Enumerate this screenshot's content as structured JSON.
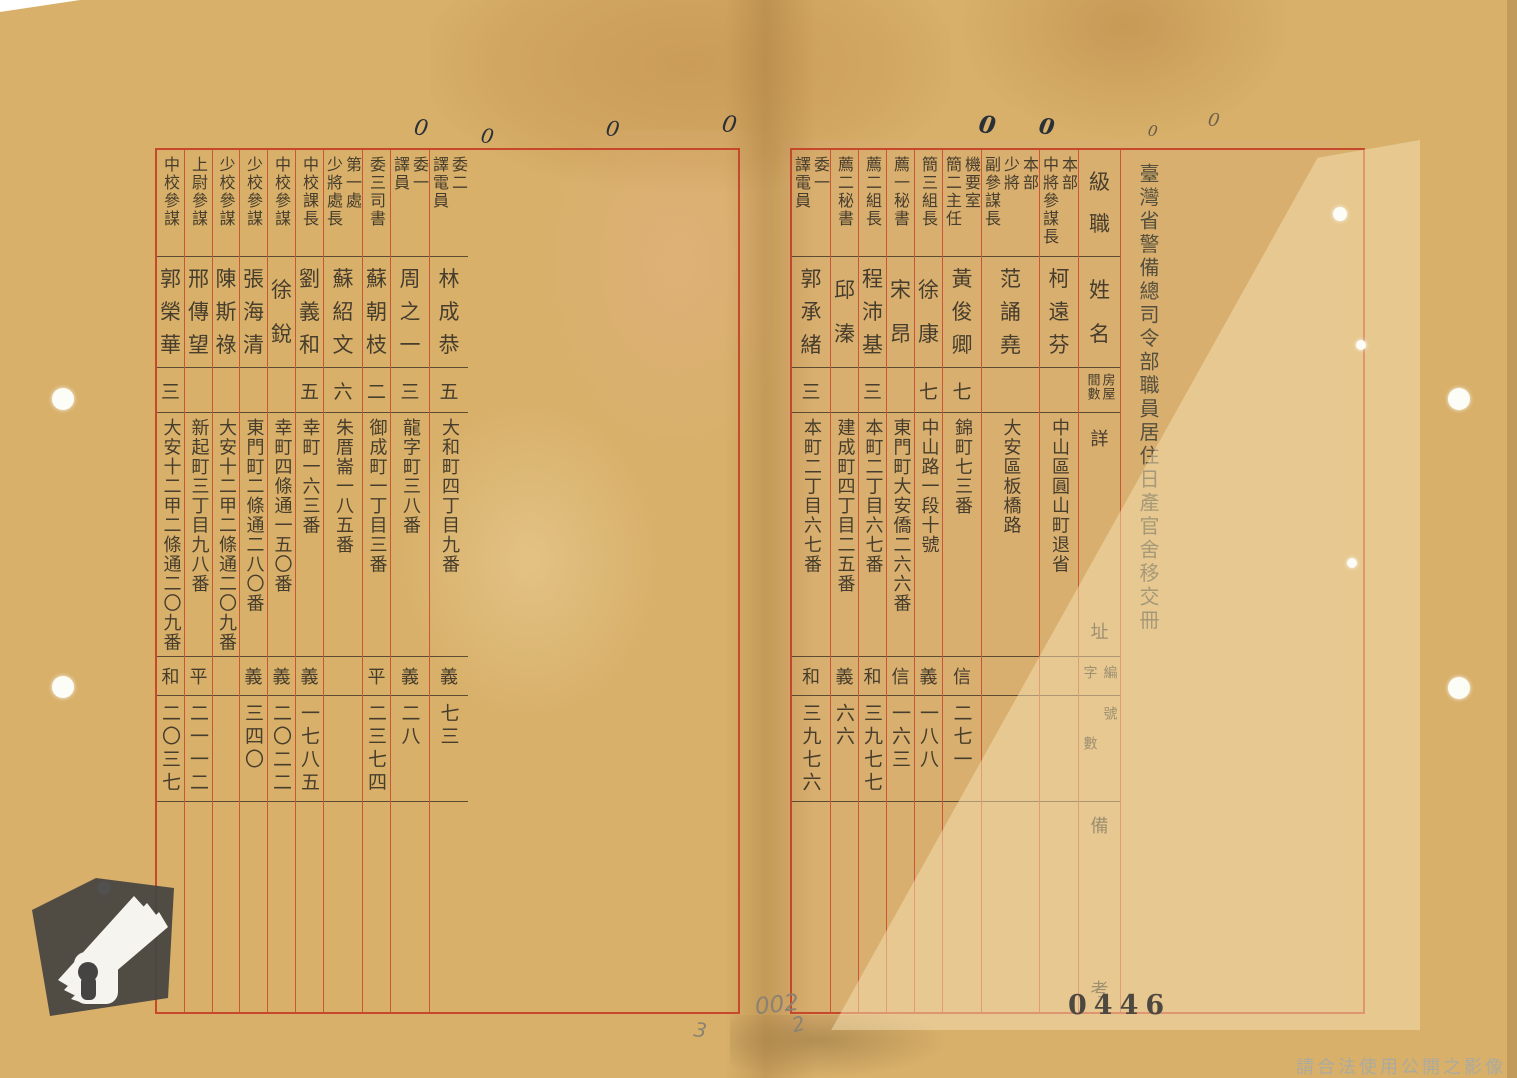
{
  "document": {
    "title": "臺灣省警備總司令部職員居住日產官舍移交冊",
    "labels": {
      "rank": "級職",
      "name": "姓名",
      "rooms_line1": "房屋",
      "rooms_line2": "間數",
      "address_top": "詳",
      "address_bottom": "址",
      "serial_main": "編",
      "serial_zi": "字",
      "serial_hao": "號",
      "serial_shu": "數",
      "remarks_top": "備",
      "remarks_bottom": "考"
    },
    "right_page": {
      "columns": [
        {
          "rank_lines": [
            "本部",
            "中將參謀長"
          ],
          "name": "柯遠芬",
          "rooms": "",
          "address": "中山區圓山町退省",
          "zi": "",
          "num": ""
        },
        {
          "rank_lines": [
            "本部",
            "少將",
            "副參謀長"
          ],
          "name": "范誦堯",
          "rooms": "",
          "address": "大安區板橋路",
          "zi": "",
          "num": ""
        },
        {
          "rank_lines": [
            "機要室",
            "簡二主任"
          ],
          "name": "黃俊卿",
          "rooms": "七",
          "address": "錦町七三番",
          "zi": "信",
          "num": "二七一"
        },
        {
          "rank_lines": [
            "簡三組長"
          ],
          "name": "徐康",
          "rooms": "七",
          "address": "中山路一段十號",
          "zi": "義",
          "num": "一八八"
        },
        {
          "rank_lines": [
            "薦一秘書"
          ],
          "name": "宋昂",
          "rooms": "",
          "address": "東門町大安僑二六六番",
          "zi": "信",
          "num": "一六三"
        },
        {
          "rank_lines": [
            "薦二組長"
          ],
          "name": "程沛基",
          "rooms": "三",
          "address": "本町二丁目六七番",
          "zi": "和",
          "num": "三九七七"
        },
        {
          "rank_lines": [
            "薦二秘書"
          ],
          "name": "邱溱",
          "rooms": "",
          "address": "建成町四丁目二五番",
          "zi": "義",
          "num": "六六"
        },
        {
          "rank_lines": [
            "委一",
            "譯電員"
          ],
          "name": "郭承緒",
          "rooms": "三",
          "address": "本町二丁目六七番",
          "zi": "和",
          "num": "三九七六"
        }
      ]
    },
    "left_page": {
      "columns": [
        {
          "rank_lines": [
            "委二",
            "譯電員"
          ],
          "name": "林成恭",
          "rooms": "五",
          "address": "大和町四丁目九番",
          "zi": "義",
          "num": "七三"
        },
        {
          "rank_lines": [
            "委一",
            "譯員"
          ],
          "name": "周之一",
          "rooms": "三",
          "address": "龍字町三八番",
          "zi": "義",
          "num": "二八"
        },
        {
          "rank_lines": [
            "委三司書"
          ],
          "name": "蘇朝枝",
          "rooms": "二",
          "address": "御成町一丁目三番",
          "zi": "平",
          "num": "二三七四"
        },
        {
          "rank_lines": [
            "第一處",
            "少將處長"
          ],
          "name": "蘇紹文",
          "rooms": "六",
          "address": "朱厝崙一八五番",
          "zi": "",
          "num": ""
        },
        {
          "rank_lines": [
            "中校課長"
          ],
          "name": "劉義和",
          "rooms": "五",
          "address": "幸町一六三番",
          "zi": "義",
          "num": "一七八五"
        },
        {
          "rank_lines": [
            "中校參謀"
          ],
          "name": "徐銳",
          "rooms": "",
          "address": "幸町四條通一五〇番",
          "zi": "義",
          "num": "二〇二二"
        },
        {
          "rank_lines": [
            "少校參謀"
          ],
          "name": "張海清",
          "rooms": "",
          "address": "東門町二條通二八〇番",
          "zi": "義",
          "num": "三四〇"
        },
        {
          "rank_lines": [
            "少校參謀"
          ],
          "name": "陳斯祿",
          "rooms": "",
          "address": "大安十二甲二條通二〇九番",
          "zi": "",
          "num": ""
        },
        {
          "rank_lines": [
            "上尉參謀"
          ],
          "name": "邢傳望",
          "rooms": "",
          "address": "新起町三丁目九八番",
          "zi": "平",
          "num": "二一一二"
        },
        {
          "rank_lines": [
            "中校參謀"
          ],
          "name": "郭榮華",
          "rooms": "三",
          "address": "大安十二甲二條通二〇九番",
          "zi": "和",
          "num": "二〇三七"
        }
      ]
    },
    "annotations": {
      "page_stamp": "0446",
      "pencil_mark_1": "002",
      "pencil_mark_2": "2",
      "pencil_mark_3": "3",
      "zero_mark": "0",
      "watermark": "請合法使用公開之影像"
    },
    "colors": {
      "paper": "#d8b06a",
      "grid_red": "#c43e26",
      "ink": "#473d2c",
      "watermark_gray": "#abaa9f"
    }
  }
}
